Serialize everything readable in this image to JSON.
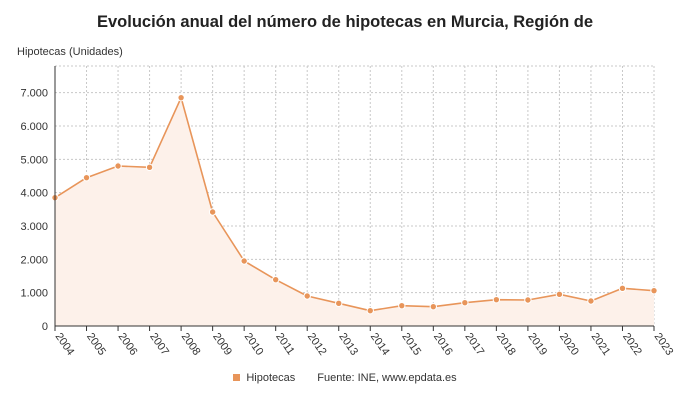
{
  "chart_data": {
    "type": "area",
    "title": "Evolución anual del número de hipotecas en Murcia, Región de",
    "ylabel": "Hipotecas (Unidades)",
    "xlabel": "",
    "x": [
      "2004",
      "2005",
      "2006",
      "2007",
      "2008",
      "2009",
      "2010",
      "2011",
      "2012",
      "2013",
      "2014",
      "2015",
      "2016",
      "2017",
      "2018",
      "2019",
      "2020",
      "2021",
      "2022",
      "2023"
    ],
    "series": [
      {
        "name": "Hipotecas",
        "color": "#e8955a",
        "values": [
          3850,
          4450,
          4800,
          4760,
          6850,
          3420,
          1950,
          1390,
          900,
          680,
          460,
          610,
          580,
          700,
          790,
          780,
          950,
          750,
          1130,
          1060
        ]
      }
    ],
    "ylim": [
      0,
      7800
    ],
    "yticks": [
      0,
      1000,
      2000,
      3000,
      4000,
      5000,
      6000,
      7000
    ],
    "ytick_labels": [
      "0",
      "1.000",
      "2.000",
      "3.000",
      "4.000",
      "5.000",
      "6.000",
      "7.000"
    ],
    "grid": true,
    "legend_position": "bottom",
    "source": "Fuente: INE, www.epdata.es"
  }
}
